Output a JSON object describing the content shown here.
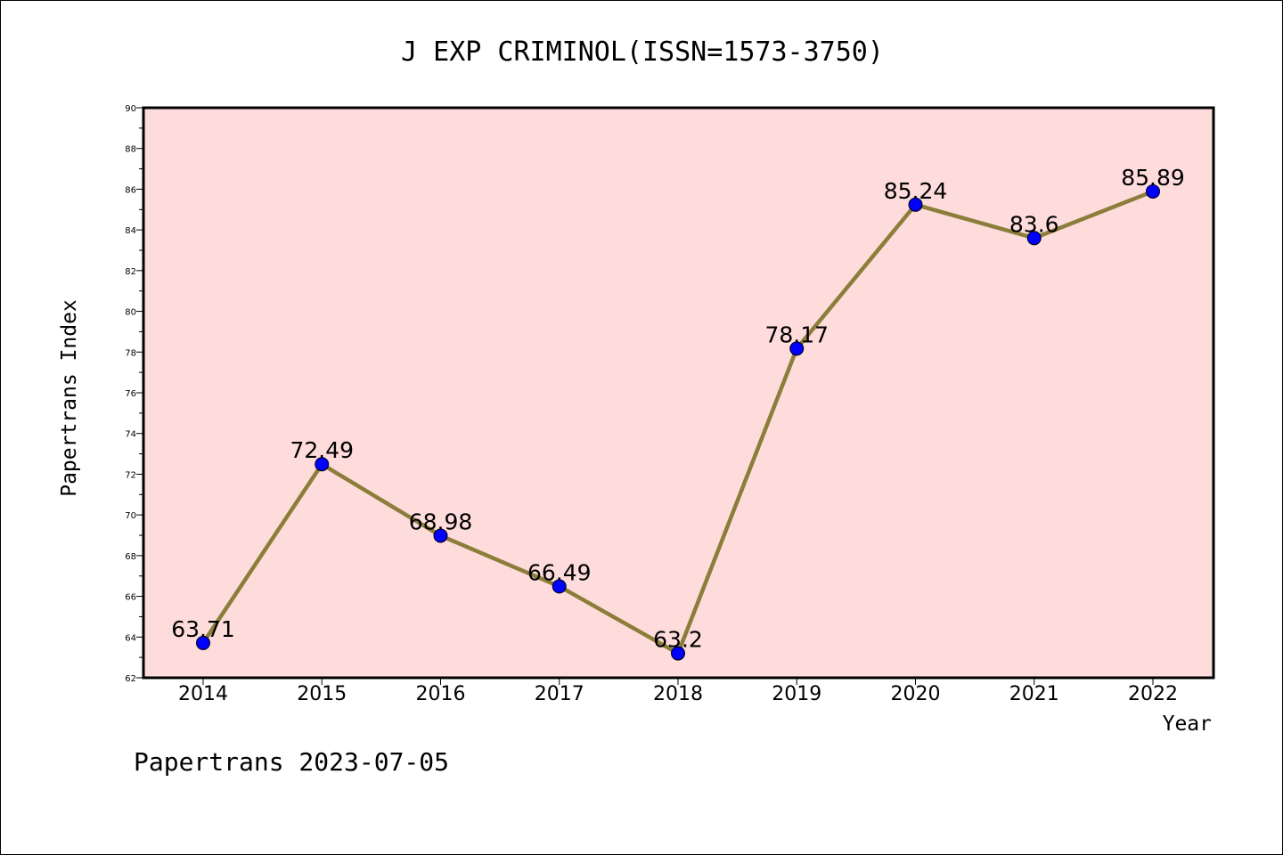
{
  "chart_data": {
    "type": "line",
    "title": "J EXP CRIMINOL(ISSN=1573-3750)",
    "xlabel": "Year",
    "ylabel": "Papertrans Index",
    "categories": [
      "2014",
      "2015",
      "2016",
      "2017",
      "2018",
      "2019",
      "2020",
      "2021",
      "2022"
    ],
    "values": [
      63.71,
      72.49,
      68.98,
      66.49,
      63.2,
      78.17,
      85.24,
      83.6,
      85.89
    ],
    "data_labels": [
      "63.71",
      "72.49",
      "68.98",
      "66.49",
      "63.2",
      "78.17",
      "85.24",
      "83.6",
      "85.89"
    ],
    "ylim": [
      62,
      90
    ],
    "yticks": [
      "62",
      "64",
      "66",
      "68",
      "70",
      "72",
      "74",
      "76",
      "78",
      "80",
      "82",
      "84",
      "86",
      "88",
      "90"
    ],
    "grid": false,
    "colors": {
      "plot_background": "#ffdcdc",
      "line": "#8b7d3a",
      "marker": "#0000ff",
      "axes": "#000000"
    }
  },
  "footer": {
    "watermark": "Papertrans 2023-07-05"
  }
}
